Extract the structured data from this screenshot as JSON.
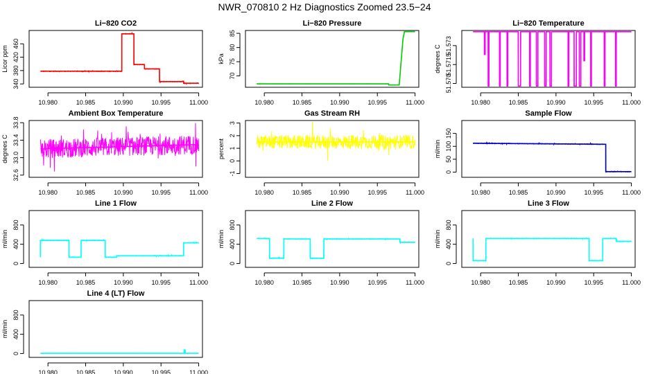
{
  "figure": {
    "title": "NWR_070810  2 Hz Diagnostics Zoomed 23.5−24"
  },
  "chart_data": [
    {
      "type": "line",
      "title": "Li−820 CO2",
      "ylabel": "Licor ppm",
      "xlim": [
        10.9775,
        11.0005
      ],
      "ylim": [
        330,
        500
      ],
      "xticks": [
        10.98,
        10.985,
        10.99,
        10.995,
        11.0
      ],
      "xtick_labels": [
        "10.980",
        "10.985",
        "10.990",
        "10.995",
        "11.000"
      ],
      "yticks": [
        340,
        380,
        420,
        460
      ],
      "color": "#ff0000",
      "noise": 1.2,
      "series": [
        {
          "x": [
            10.979,
            10.9898,
            10.9898,
            10.9914,
            10.9914,
            10.9928,
            10.9928,
            10.9948,
            10.9948,
            10.9979,
            10.9979,
            10.998,
            10.998,
            11.0
          ],
          "y": [
            378,
            378,
            490,
            490,
            398,
            398,
            385,
            385,
            347,
            347,
            348,
            348,
            342,
            342
          ]
        }
      ]
    },
    {
      "type": "line",
      "title": "Li−820 Pressure",
      "ylabel": "kPa",
      "xlim": [
        10.9775,
        11.0005
      ],
      "ylim": [
        66,
        86
      ],
      "xticks": [
        10.98,
        10.985,
        10.99,
        10.995,
        11.0
      ],
      "xtick_labels": [
        "10.980",
        "10.985",
        "10.990",
        "10.995",
        "11.000"
      ],
      "yticks": [
        70,
        75,
        80,
        85
      ],
      "color": "#00cc00",
      "noise": 0.03,
      "series": [
        {
          "x": [
            10.979,
            10.9965,
            10.9965,
            10.9979,
            10.9984,
            10.9986,
            11.0
          ],
          "y": [
            67.2,
            67.2,
            66.8,
            66.8,
            83,
            85.6,
            85.6
          ]
        }
      ]
    },
    {
      "type": "line",
      "title": "Li−820 Temperature",
      "ylabel": "degrees C",
      "xlim": [
        10.9775,
        11.0005
      ],
      "ylim": [
        51.5697,
        51.5742
      ],
      "xticks": [
        10.98,
        10.985,
        10.99,
        10.995,
        11.0
      ],
      "xtick_labels": [
        "10.980",
        "10.985",
        "10.990",
        "10.995",
        "11.000"
      ],
      "yticks": [
        51.57,
        51.5715,
        51.573
      ],
      "ytick_labels": [
        "51.570",
        "51.5715",
        "51.573"
      ],
      "color": "#ff00ff",
      "noise": 0,
      "series": [
        {
          "x": [
            10.979,
            10.9805,
            10.9805,
            10.9806,
            10.9806,
            10.981,
            10.981,
            10.9811,
            10.9811,
            10.9825,
            10.9825,
            10.9826,
            10.9826,
            10.9835,
            10.9835,
            10.9836,
            10.9836,
            10.985,
            10.985,
            10.9853,
            10.9853,
            10.9865,
            10.9865,
            10.9866,
            10.9866,
            10.9874,
            10.9874,
            10.9876,
            10.9876,
            10.9885,
            10.9885,
            10.9887,
            10.9887,
            10.9892,
            10.9892,
            10.9894,
            10.9894,
            10.9916,
            10.9916,
            10.9917,
            10.9917,
            10.9924,
            10.9924,
            10.9927,
            10.9927,
            10.9931,
            10.9931,
            10.9933,
            10.9933,
            10.9937,
            10.9937,
            10.9938,
            10.9938,
            10.9946,
            10.9946,
            10.9947,
            10.9947,
            10.9964,
            10.9964,
            10.9965,
            10.9965,
            10.9979,
            10.9979,
            10.998,
            10.998,
            11.0
          ],
          "y": [
            51.5741,
            51.5741,
            51.5723,
            51.5723,
            51.5741,
            51.5741,
            51.5698,
            51.5698,
            51.5741,
            51.5741,
            51.5698,
            51.5698,
            51.5741,
            51.5741,
            51.5698,
            51.5698,
            51.5741,
            51.5741,
            51.5698,
            51.5698,
            51.5741,
            51.5741,
            51.5698,
            51.5698,
            51.5741,
            51.5741,
            51.5698,
            51.5698,
            51.5741,
            51.5741,
            51.5698,
            51.5698,
            51.5741,
            51.5741,
            51.5698,
            51.5698,
            51.5741,
            51.5741,
            51.5698,
            51.5698,
            51.5741,
            51.5741,
            51.5698,
            51.5698,
            51.5741,
            51.5741,
            51.5698,
            51.5698,
            51.5741,
            51.5741,
            51.5718,
            51.5718,
            51.5741,
            51.5741,
            51.5698,
            51.5698,
            51.5741,
            51.5741,
            51.5698,
            51.5698,
            51.5741,
            51.5741,
            51.5698,
            51.5698,
            51.5741,
            51.5741
          ]
        }
      ]
    },
    {
      "type": "line",
      "title": "Ambient Box Temperature",
      "ylabel": "degrees C",
      "xlim": [
        10.9775,
        11.0005
      ],
      "ylim": [
        32.55,
        33.85
      ],
      "xticks": [
        10.98,
        10.985,
        10.99,
        10.995,
        11.0
      ],
      "xtick_labels": [
        "10.980",
        "10.985",
        "10.990",
        "10.995",
        "11.000"
      ],
      "yticks": [
        32.6,
        33.0,
        33.4,
        33.8
      ],
      "ytick_labels": [
        "32.6",
        "33.0",
        "33.4",
        "33.8"
      ],
      "color": "#ff00ff",
      "noise": 0.22,
      "series": [
        {
          "x": [
            10.979,
            11.0
          ],
          "y": [
            33.2,
            33.3
          ]
        }
      ]
    },
    {
      "type": "line",
      "title": "Gas Stream RH",
      "ylabel": "percent",
      "xlim": [
        10.9775,
        11.0005
      ],
      "ylim": [
        -1.3,
        3.2
      ],
      "xticks": [
        10.98,
        10.985,
        10.99,
        10.995,
        11.0
      ],
      "xtick_labels": [
        "10.980",
        "10.985",
        "10.990",
        "10.995",
        "11.000"
      ],
      "yticks": [
        -1,
        0,
        1,
        2,
        3
      ],
      "color": "#ffff00",
      "noise": 0.55,
      "series": [
        {
          "x": [
            10.979,
            11.0
          ],
          "y": [
            1.5,
            1.5
          ]
        }
      ]
    },
    {
      "type": "line",
      "title": "Sample Flow",
      "ylabel": "ml/min",
      "xlim": [
        10.9775,
        11.0005
      ],
      "ylim": [
        -20,
        200
      ],
      "xticks": [
        10.98,
        10.985,
        10.99,
        10.995,
        11.0
      ],
      "xtick_labels": [
        "10.980",
        "10.985",
        "10.990",
        "10.995",
        "11.000"
      ],
      "yticks": [
        0,
        50,
        100,
        150
      ],
      "color": "#0000cc",
      "noise": 1.5,
      "series": [
        {
          "x": [
            10.979,
            10.9966,
            10.9966,
            11.0
          ],
          "y": [
            112,
            108,
            2,
            2
          ]
        }
      ]
    },
    {
      "type": "line",
      "title": "Line 1 Flow",
      "ylabel": "ml/min",
      "xlim": [
        10.9775,
        11.0005
      ],
      "ylim": [
        -80,
        1100
      ],
      "xticks": [
        10.98,
        10.985,
        10.99,
        10.995,
        11.0
      ],
      "xtick_labels": [
        "10.980",
        "10.985",
        "10.990",
        "10.995",
        "11.000"
      ],
      "yticks": [
        0,
        400,
        800
      ],
      "color": "#00ffff",
      "noise": 8,
      "series": [
        {
          "x": [
            10.979,
            10.979,
            10.9828,
            10.9828,
            10.9844,
            10.9844,
            10.9876,
            10.9876,
            10.9891,
            10.9891,
            10.998,
            10.998,
            11.0
          ],
          "y": [
            130,
            480,
            480,
            130,
            130,
            480,
            480,
            130,
            130,
            160,
            160,
            430,
            430
          ]
        }
      ]
    },
    {
      "type": "line",
      "title": "Line 2 Flow",
      "ylabel": "ml/min",
      "xlim": [
        10.9775,
        11.0005
      ],
      "ylim": [
        -80,
        1100
      ],
      "xticks": [
        10.98,
        10.985,
        10.99,
        10.995,
        11.0
      ],
      "xtick_labels": [
        "10.980",
        "10.985",
        "10.990",
        "10.995",
        "11.000"
      ],
      "yticks": [
        0,
        400,
        800
      ],
      "color": "#00ffff",
      "noise": 8,
      "series": [
        {
          "x": [
            10.979,
            10.9807,
            10.9807,
            10.9826,
            10.9826,
            10.9861,
            10.9861,
            10.9879,
            10.9879,
            10.998,
            10.998,
            11.0
          ],
          "y": [
            520,
            520,
            110,
            110,
            510,
            510,
            110,
            110,
            510,
            510,
            440,
            440
          ]
        }
      ]
    },
    {
      "type": "line",
      "title": "Line 3 Flow",
      "ylabel": "ml/min",
      "xlim": [
        10.9775,
        11.0005
      ],
      "ylim": [
        -80,
        1100
      ],
      "xticks": [
        10.98,
        10.985,
        10.99,
        10.995,
        11.0
      ],
      "xtick_labels": [
        "10.980",
        "10.985",
        "10.990",
        "10.995",
        "11.000"
      ],
      "yticks": [
        0,
        400,
        800
      ],
      "color": "#00ffff",
      "noise": 8,
      "series": [
        {
          "x": [
            10.979,
            10.979,
            10.9807,
            10.9807,
            10.9826,
            10.9826,
            10.9944,
            10.9944,
            10.9962,
            10.9962,
            10.998,
            10.998,
            11.0
          ],
          "y": [
            520,
            60,
            60,
            520,
            520,
            520,
            520,
            60,
            60,
            520,
            520,
            460,
            460
          ]
        }
      ]
    },
    {
      "type": "line",
      "title": "Line 4 (LT) Flow",
      "ylabel": "ml/min",
      "xlim": [
        10.9775,
        11.0005
      ],
      "ylim": [
        -80,
        1100
      ],
      "xticks": [
        10.98,
        10.985,
        10.99,
        10.995,
        11.0
      ],
      "xtick_labels": [
        "10.980",
        "10.985",
        "10.990",
        "10.995",
        "11.000"
      ],
      "yticks": [
        0,
        400,
        800
      ],
      "color": "#00ffff",
      "noise": 2,
      "series": [
        {
          "x": [
            10.979,
            10.9981,
            10.9981,
            10.9982,
            10.9982,
            11.0
          ],
          "y": [
            5,
            5,
            75,
            75,
            5,
            5
          ]
        }
      ]
    }
  ]
}
